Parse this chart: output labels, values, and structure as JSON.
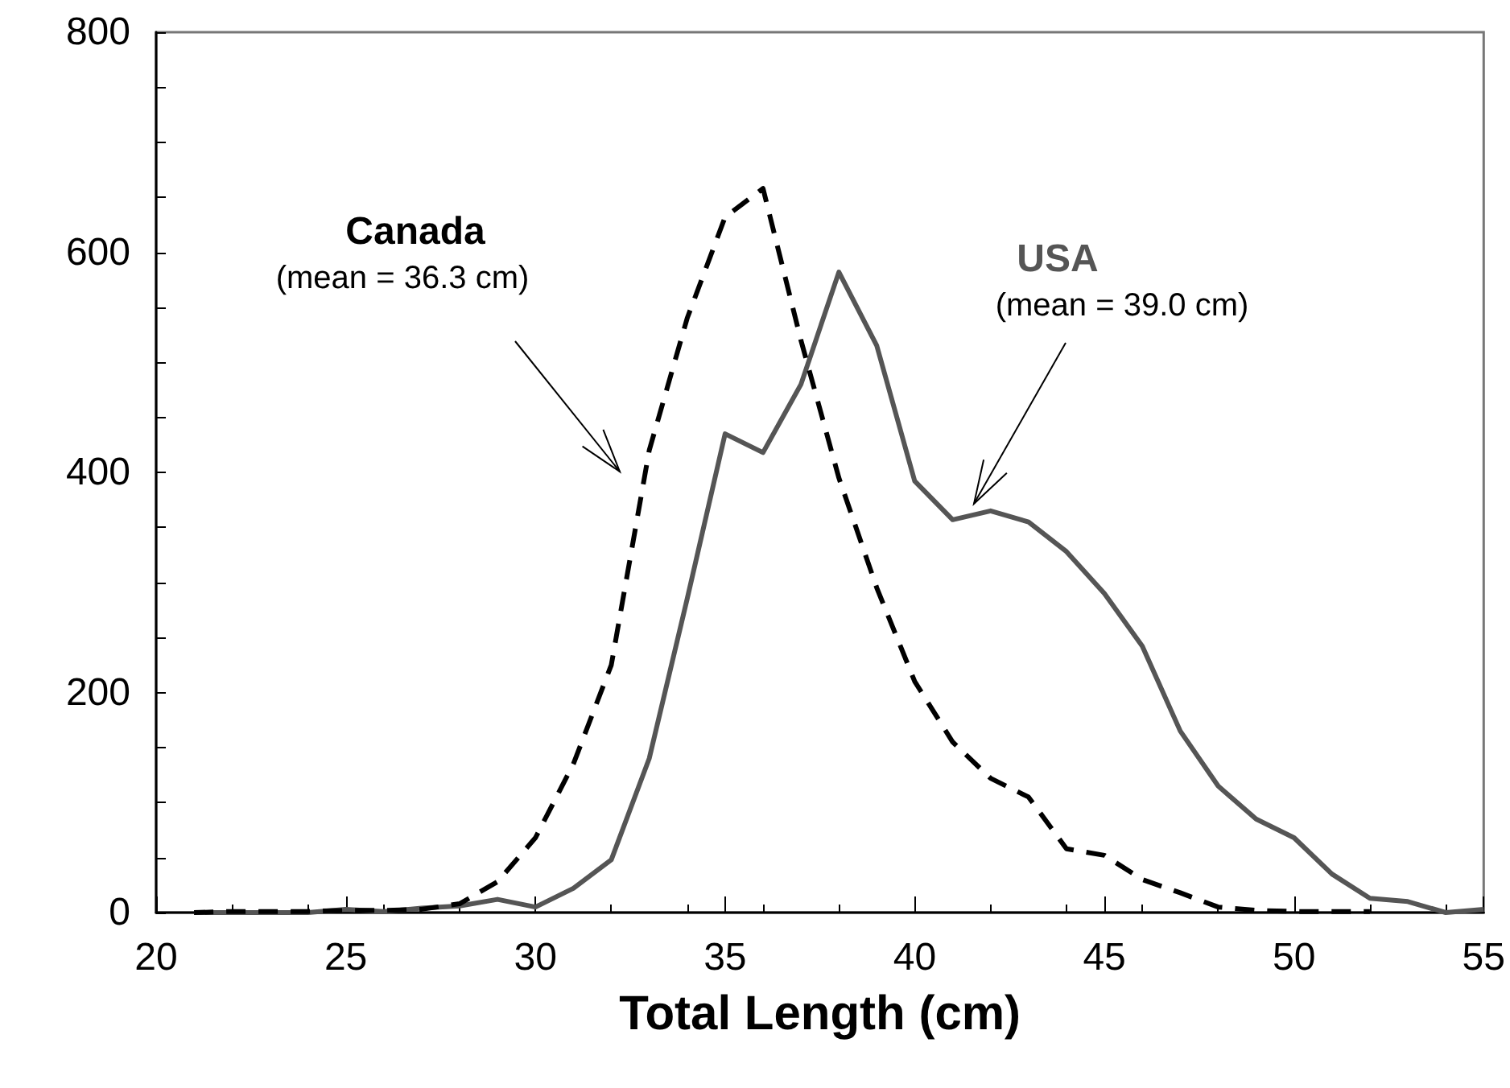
{
  "chart_data": {
    "type": "line",
    "xlabel": "Total Length (cm)",
    "x": [
      21,
      22,
      23,
      24,
      25,
      26,
      27,
      28,
      29,
      30,
      31,
      32,
      33,
      34,
      35,
      36,
      37,
      38,
      39,
      40,
      41,
      42,
      43,
      44,
      45,
      46,
      47,
      48,
      49,
      50,
      51,
      52,
      53,
      54,
      55
    ],
    "series": [
      {
        "name": "USA",
        "color": "#555555",
        "line_style": "solid",
        "values": [
          0,
          0,
          0,
          0,
          3,
          1,
          4,
          6,
          12,
          5,
          22,
          48,
          140,
          285,
          435,
          418,
          480,
          582,
          515,
          392,
          357,
          365,
          355,
          328,
          290,
          242,
          165,
          115,
          85,
          68,
          35,
          13,
          10,
          0,
          3
        ]
      },
      {
        "name": "Canada",
        "color": "#000000",
        "line_style": "dashed",
        "values": [
          0,
          1,
          1,
          1,
          2,
          2,
          3,
          8,
          28,
          68,
          135,
          225,
          420,
          540,
          632,
          658,
          520,
          395,
          295,
          210,
          155,
          122,
          105,
          58,
          52,
          30,
          18,
          5,
          2,
          1,
          1,
          1,
          null,
          null,
          null
        ]
      }
    ],
    "annotations": [
      "(mean = 39.0 cm)",
      "(mean = 36.3 cm)"
    ],
    "xlim": [
      20,
      55
    ],
    "xticks": [
      20,
      25,
      30,
      35,
      40,
      45,
      50,
      55
    ],
    "ylim": [
      0,
      800
    ],
    "yticks": [
      0,
      200,
      400,
      600,
      800
    ],
    "grid": false,
    "legend": false,
    "marker": "none"
  }
}
